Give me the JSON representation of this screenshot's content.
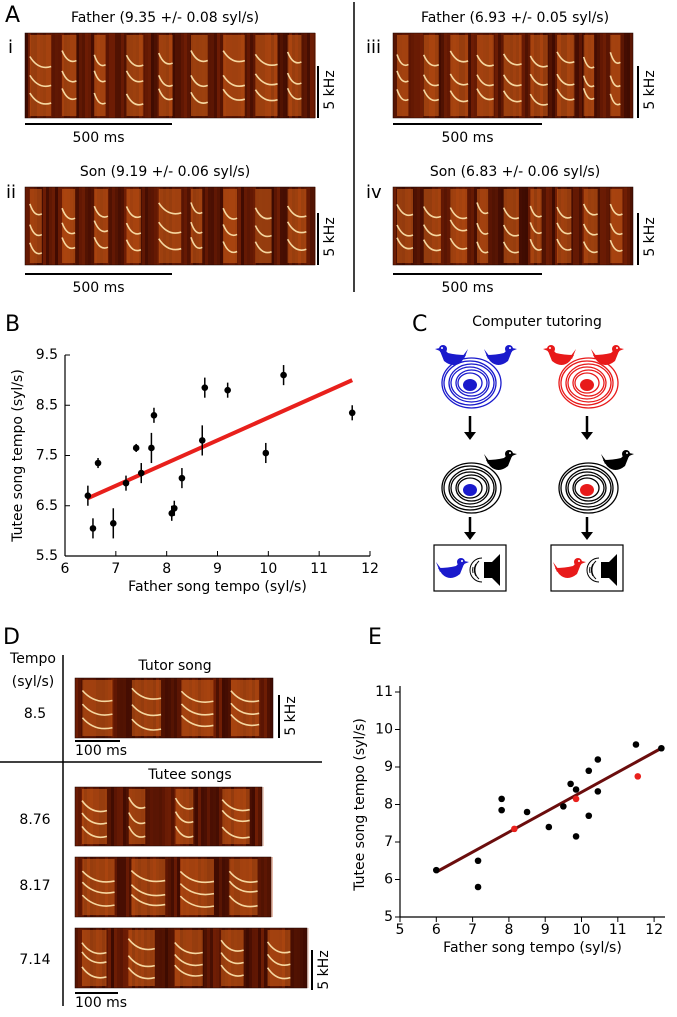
{
  "panel_labels": [
    "A",
    "B",
    "C",
    "D",
    "E"
  ],
  "panel_a": {
    "recordings": [
      {
        "numeral": "i",
        "title": "Father  (9.35 +/- 0.08  syl/s)",
        "freq_scale": "5 kHz",
        "time_scale": "500 ms"
      },
      {
        "numeral": "ii",
        "title": "Son  (9.19 +/- 0.06  syl/s)",
        "freq_scale": "5 kHz",
        "time_scale": "500 ms"
      },
      {
        "numeral": "iii",
        "title": "Father  (6.93 +/- 0.05  syl/s)",
        "freq_scale": "5 kHz",
        "time_scale": "500 ms"
      },
      {
        "numeral": "iv",
        "title": "Son  (6.83 +/- 0.06  syl/s)",
        "freq_scale": "5 kHz",
        "time_scale": "500 ms"
      }
    ]
  },
  "panel_c": {
    "title": "Computer tutoring"
  },
  "panel_d": {
    "tempo_header": [
      "Tempo",
      "(syl/s)"
    ],
    "tutor_title": "Tutor song",
    "tutor_tempo": 8.5,
    "tutee_title": "Tutee songs",
    "tutee_tempos": [
      8.76,
      8.17,
      7.14
    ],
    "freq_scale": [
      "5 kHz",
      "5 kHz"
    ],
    "time_scale": [
      "100 ms",
      "100 ms"
    ]
  },
  "chart_data": [
    {
      "type": "scatter",
      "xlabel": "Father song tempo (syl/s)",
      "ylabel": "Tutee song tempo (syl/s)",
      "xlim": [
        6,
        12
      ],
      "ylim": [
        5.5,
        9.5
      ],
      "xticks": [
        6,
        7,
        8,
        9,
        10,
        11,
        12
      ],
      "yticks": [
        5.5,
        6.5,
        7.5,
        8.5,
        9.5
      ],
      "series": [
        {
          "color": "#000000",
          "x": [
            6.45,
            6.55,
            6.65,
            6.95,
            7.2,
            7.4,
            7.5,
            7.7,
            7.75,
            8.1,
            8.15,
            8.3,
            8.7,
            8.75,
            9.2,
            9.95,
            10.3,
            11.65
          ],
          "values": [
            6.7,
            6.05,
            7.35,
            6.15,
            6.95,
            7.65,
            7.15,
            7.65,
            8.3,
            6.35,
            6.45,
            7.05,
            7.8,
            8.85,
            8.8,
            7.55,
            9.1,
            8.35
          ],
          "errors": [
            0.2,
            0.2,
            0.1,
            0.3,
            0.15,
            0.08,
            0.2,
            0.3,
            0.15,
            0.15,
            0.15,
            0.2,
            0.3,
            0.2,
            0.15,
            0.2,
            0.2,
            0.15
          ]
        }
      ],
      "fit": {
        "color": "#e8201c",
        "x": [
          6.45,
          11.65
        ],
        "values": [
          6.65,
          9.0
        ]
      }
    },
    {
      "type": "scatter",
      "xlabel": "Father song tempo (syl/s)",
      "ylabel": "Tutee song tempo (syl/s)",
      "xlim": [
        5,
        12.3
      ],
      "ylim": [
        5,
        11
      ],
      "xticks": [
        5,
        6,
        7,
        8,
        9,
        10,
        11,
        12
      ],
      "yticks": [
        5,
        6,
        7,
        8,
        9,
        10,
        11
      ],
      "series": [
        {
          "color": "#000000",
          "x": [
            6.0,
            7.15,
            7.15,
            7.8,
            7.8,
            8.5,
            9.1,
            9.5,
            9.7,
            9.85,
            9.85,
            10.2,
            10.2,
            10.45,
            10.45,
            11.5,
            12.2
          ],
          "values": [
            6.25,
            6.5,
            5.8,
            8.15,
            7.85,
            7.8,
            7.4,
            7.95,
            8.55,
            8.4,
            7.15,
            8.9,
            7.7,
            9.2,
            8.35,
            9.6,
            9.5
          ]
        },
        {
          "color": "#e8201c",
          "x": [
            8.15,
            9.85,
            11.55
          ],
          "values": [
            7.35,
            8.15,
            8.75
          ]
        }
      ],
      "fit": {
        "color": "#6b0d0d",
        "x": [
          6.0,
          12.2
        ],
        "values": [
          6.2,
          9.5
        ]
      }
    }
  ]
}
